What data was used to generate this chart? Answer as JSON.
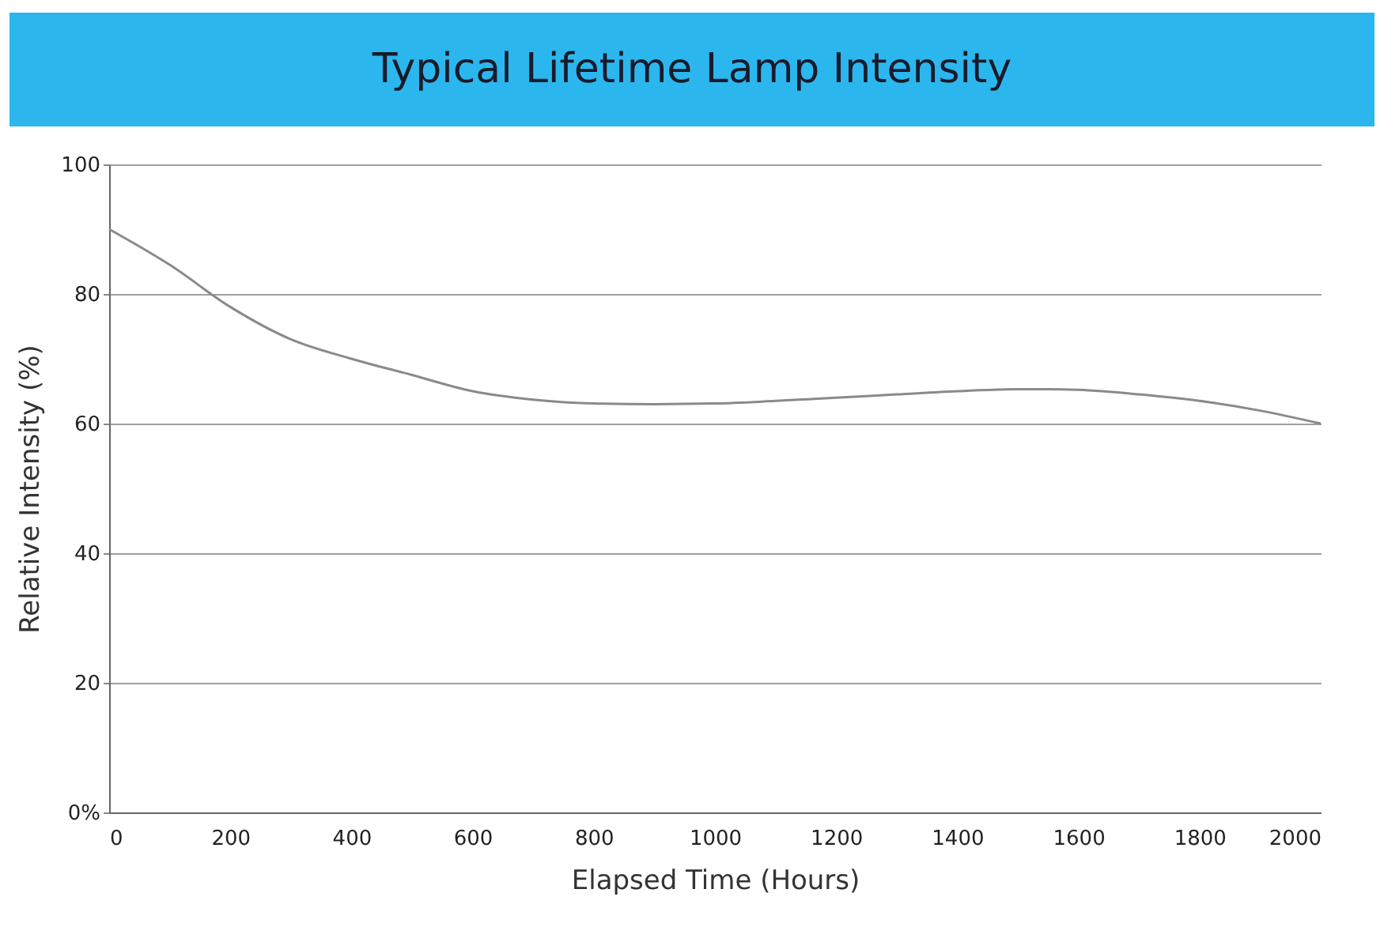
{
  "chart_data": {
    "type": "line",
    "title": "Typical Lifetime Lamp Intensity",
    "xlabel": "Elapsed Time (Hours)",
    "ylabel": "Relative Intensity (%)",
    "x": [
      0,
      100,
      200,
      300,
      400,
      500,
      600,
      700,
      800,
      900,
      1000,
      1100,
      1200,
      1300,
      1400,
      1500,
      1550,
      1600,
      1700,
      1800,
      1900,
      2000
    ],
    "series": [
      {
        "color": "#8a8a8a",
        "values": [
          90,
          84.5,
          78,
          73,
          70,
          67.5,
          65,
          63.7,
          63.1,
          63,
          63.1,
          63.5,
          64,
          64.5,
          65,
          65.3,
          65.3,
          65.2,
          64.5,
          63.5,
          62,
          60
        ]
      }
    ],
    "xlim": [
      0,
      2000
    ],
    "xticks": [
      0,
      200,
      400,
      600,
      800,
      1000,
      1200,
      1400,
      1600,
      1800,
      2000
    ],
    "ylim": [
      0,
      100
    ],
    "yticks": [
      {
        "value": 0,
        "label": "0%"
      },
      20,
      40,
      60,
      80,
      100
    ],
    "grid": "y",
    "legend": false,
    "marker": "none",
    "line_style": "solid"
  }
}
